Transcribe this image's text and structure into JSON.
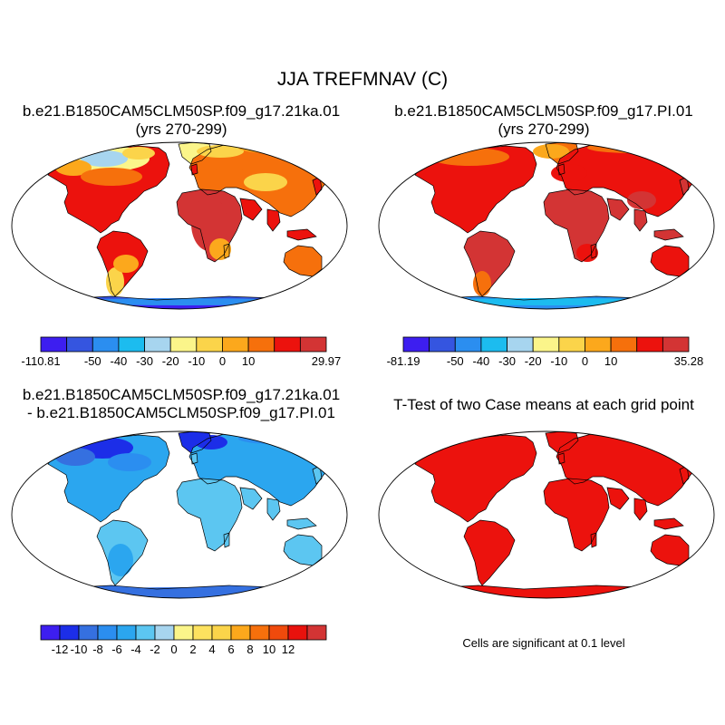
{
  "title": "JJA TREFMNAV (C)",
  "panels": [
    {
      "id": "p1",
      "title_lines": [
        "b.e21.B1850CAM5CLM50SP.f09_g17.21ka.01",
        "(yrs 270-299)"
      ]
    },
    {
      "id": "p2",
      "title_lines": [
        "b.e21.B1850CAM5CLM50SP.f09_g17.PI.01",
        "(yrs 270-299)"
      ]
    },
    {
      "id": "p3",
      "title_lines": [
        "b.e21.B1850CAM5CLM50SP.f09_g17.21ka.01",
        "- b.e21.B1850CAM5CLM50SP.f09_g17.PI.01"
      ]
    },
    {
      "id": "p4",
      "title_lines": [
        "T-Test of two Case means at each grid point"
      ]
    }
  ],
  "colorbars": [
    {
      "id": "cb1",
      "colors": [
        "#3d1ef0",
        "#3555e0",
        "#2b8ef0",
        "#1cbcef",
        "#a7d5ef",
        "#fbf58a",
        "#fbd44a",
        "#fca81c",
        "#f6700c",
        "#ec120d",
        "#d33434"
      ],
      "labels": [
        "-110.81",
        "-50",
        "-40",
        "-30",
        "-20",
        "-10",
        "0",
        "10",
        "29.97"
      ]
    },
    {
      "id": "cb2",
      "colors": [
        "#3d1ef0",
        "#3555e0",
        "#2b8ef0",
        "#1cbcef",
        "#a7d5ef",
        "#fbf58a",
        "#fbd44a",
        "#fca81c",
        "#f6700c",
        "#ec120d",
        "#d33434"
      ],
      "labels": [
        "-81.19",
        "-50",
        "-40",
        "-30",
        "-20",
        "-10",
        "0",
        "10",
        "35.28"
      ]
    },
    {
      "id": "cb3",
      "colors": [
        "#3d1ef0",
        "#1c2ee8",
        "#3570e0",
        "#2b8ef0",
        "#2ba6ef",
        "#5cc6f1",
        "#a7d5ef",
        "#fbf58a",
        "#fde25f",
        "#fbd44a",
        "#fca81c",
        "#f6700c",
        "#f04a0c",
        "#e8120d",
        "#d33434"
      ],
      "labels": [
        "-12",
        "-10",
        "-8",
        "-6",
        "-4",
        "-2",
        "0",
        "2",
        "4",
        "6",
        "8",
        "10",
        "12"
      ]
    }
  ],
  "note": "Cells are significant at 0.1 level",
  "colors": {
    "ocean": "#ffffff",
    "outline": "#000000"
  }
}
